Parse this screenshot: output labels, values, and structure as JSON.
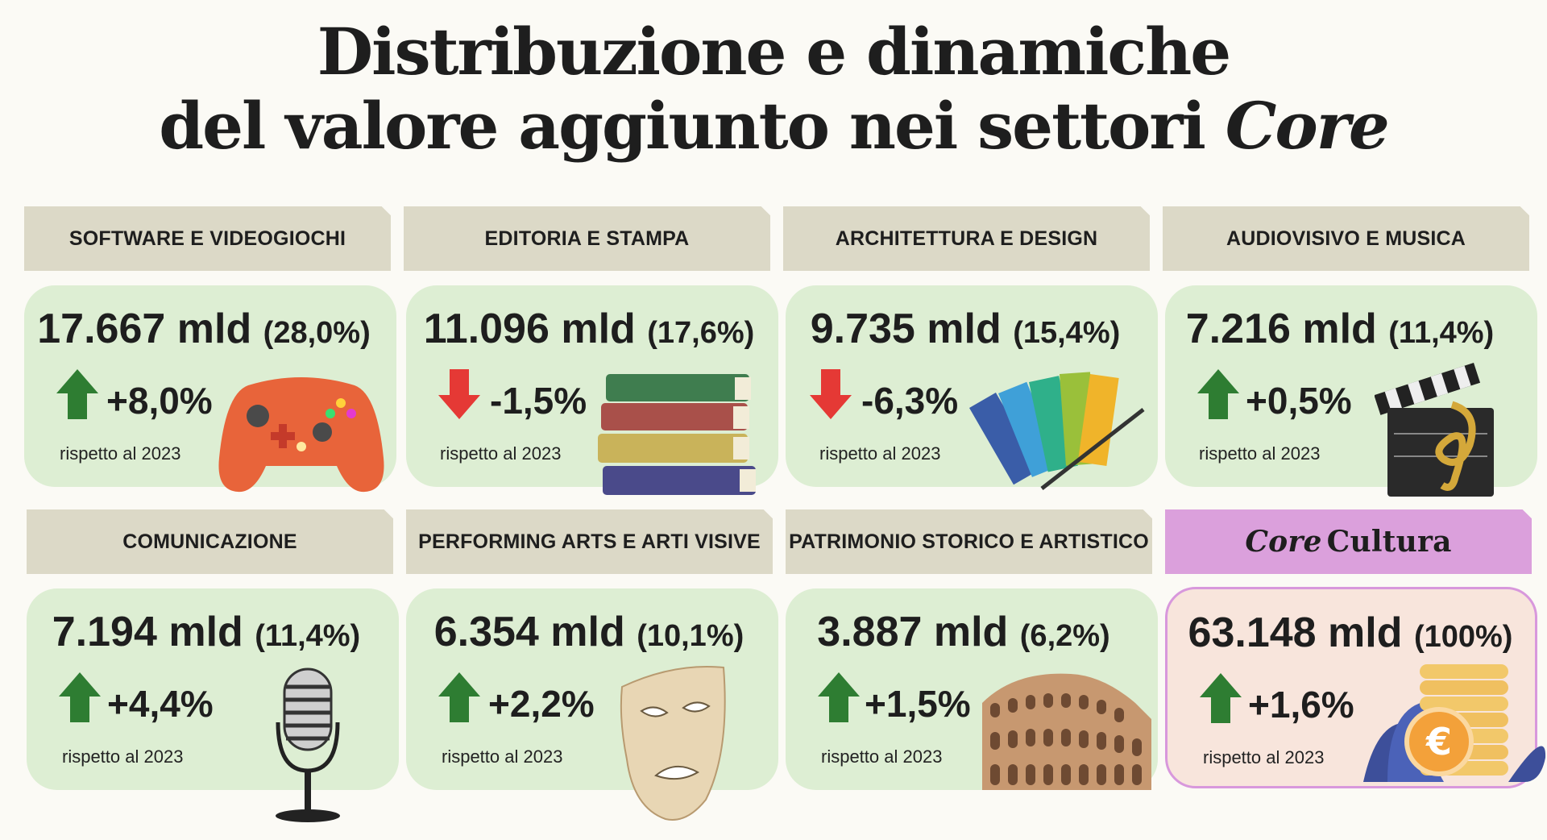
{
  "title": {
    "line1": "Distribuzione e dinamiche",
    "line2_prefix": "del valore aggiunto nei settori",
    "line2_core": "Core"
  },
  "colors": {
    "header_bg": "#dcd9c7",
    "card_bg": "#ddeed3",
    "total_header_bg": "#dba0dc",
    "total_card_bg": "#f8e5dc",
    "arrow_up": "#2e7d32",
    "arrow_down": "#e53935"
  },
  "sectors": [
    {
      "name": "SOFTWARE E VIDEOGIOCHI",
      "value": "17.667 mld",
      "share": "(28,0%)",
      "change": "+8,0%",
      "direction": "up",
      "reference": "rispetto al 2023",
      "icon": "gamepad-icon"
    },
    {
      "name": "EDITORIA E STAMPA",
      "value": "11.096 mld",
      "share": "(17,6%)",
      "change": "-1,5%",
      "direction": "down",
      "reference": "rispetto al 2023",
      "icon": "books-icon"
    },
    {
      "name": "ARCHITETTURA E DESIGN",
      "value": "9.735 mld",
      "share": "(15,4%)",
      "change": "-6,3%",
      "direction": "down",
      "reference": "rispetto al 2023",
      "icon": "color-swatches-icon"
    },
    {
      "name": "AUDIOVISIVO E MUSICA",
      "value": "7.216 mld",
      "share": "(11,4%)",
      "change": "+0,5%",
      "direction": "up",
      "reference": "rispetto al 2023",
      "icon": "clapperboard-icon"
    },
    {
      "name": "COMUNICAZIONE",
      "value": "7.194 mld",
      "share": "(11,4%)",
      "change": "+4,4%",
      "direction": "up",
      "reference": "rispetto al 2023",
      "icon": "microphone-icon"
    },
    {
      "name": "PERFORMING ARTS E ARTI VISIVE",
      "value": "6.354 mld",
      "share": "(10,1%)",
      "change": "+2,2%",
      "direction": "up",
      "reference": "rispetto al 2023",
      "icon": "theater-mask-icon"
    },
    {
      "name": "PATRIMONIO STORICO E ARTISTICO",
      "value": "3.887 mld",
      "share": "(6,2%)",
      "change": "+1,5%",
      "direction": "up",
      "reference": "rispetto al 2023",
      "icon": "colosseum-icon"
    }
  ],
  "total": {
    "label_core": "Core",
    "label_rest": "Cultura",
    "value": "63.148 mld",
    "share": "(100%)",
    "change": "+1,6%",
    "direction": "up",
    "reference": "rispetto al 2023",
    "icon": "euro-coins-icon"
  }
}
